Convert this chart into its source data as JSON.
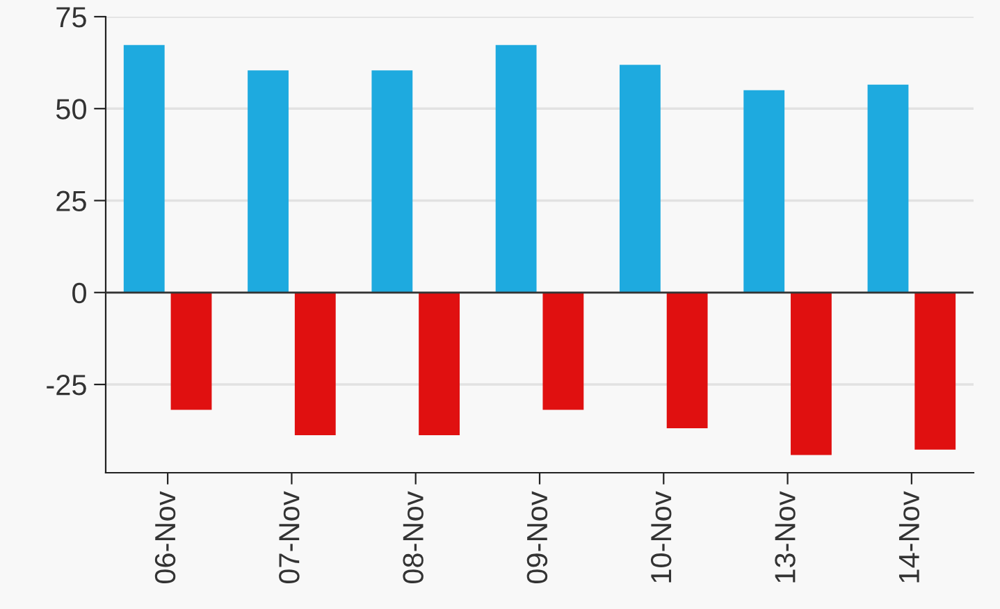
{
  "chart_data": {
    "type": "bar",
    "categories": [
      "06-Nov",
      "07-Nov",
      "08-Nov",
      "09-Nov",
      "10-Nov",
      "13-Nov",
      "14-Nov"
    ],
    "series": [
      {
        "color": "#1eaadf",
        "values": [
          67.3,
          60.4,
          60.4,
          67.3,
          61.9,
          55,
          56.5
        ]
      },
      {
        "color": "#e01010",
        "values": [
          -31.9,
          -38.8,
          -38.8,
          -31.9,
          -36.9,
          -44.2,
          -42.7
        ]
      }
    ],
    "ylim": [
      -49,
      75
    ],
    "yticks": [
      -25,
      0,
      25,
      50,
      75
    ],
    "grid": "y",
    "legend": false
  }
}
